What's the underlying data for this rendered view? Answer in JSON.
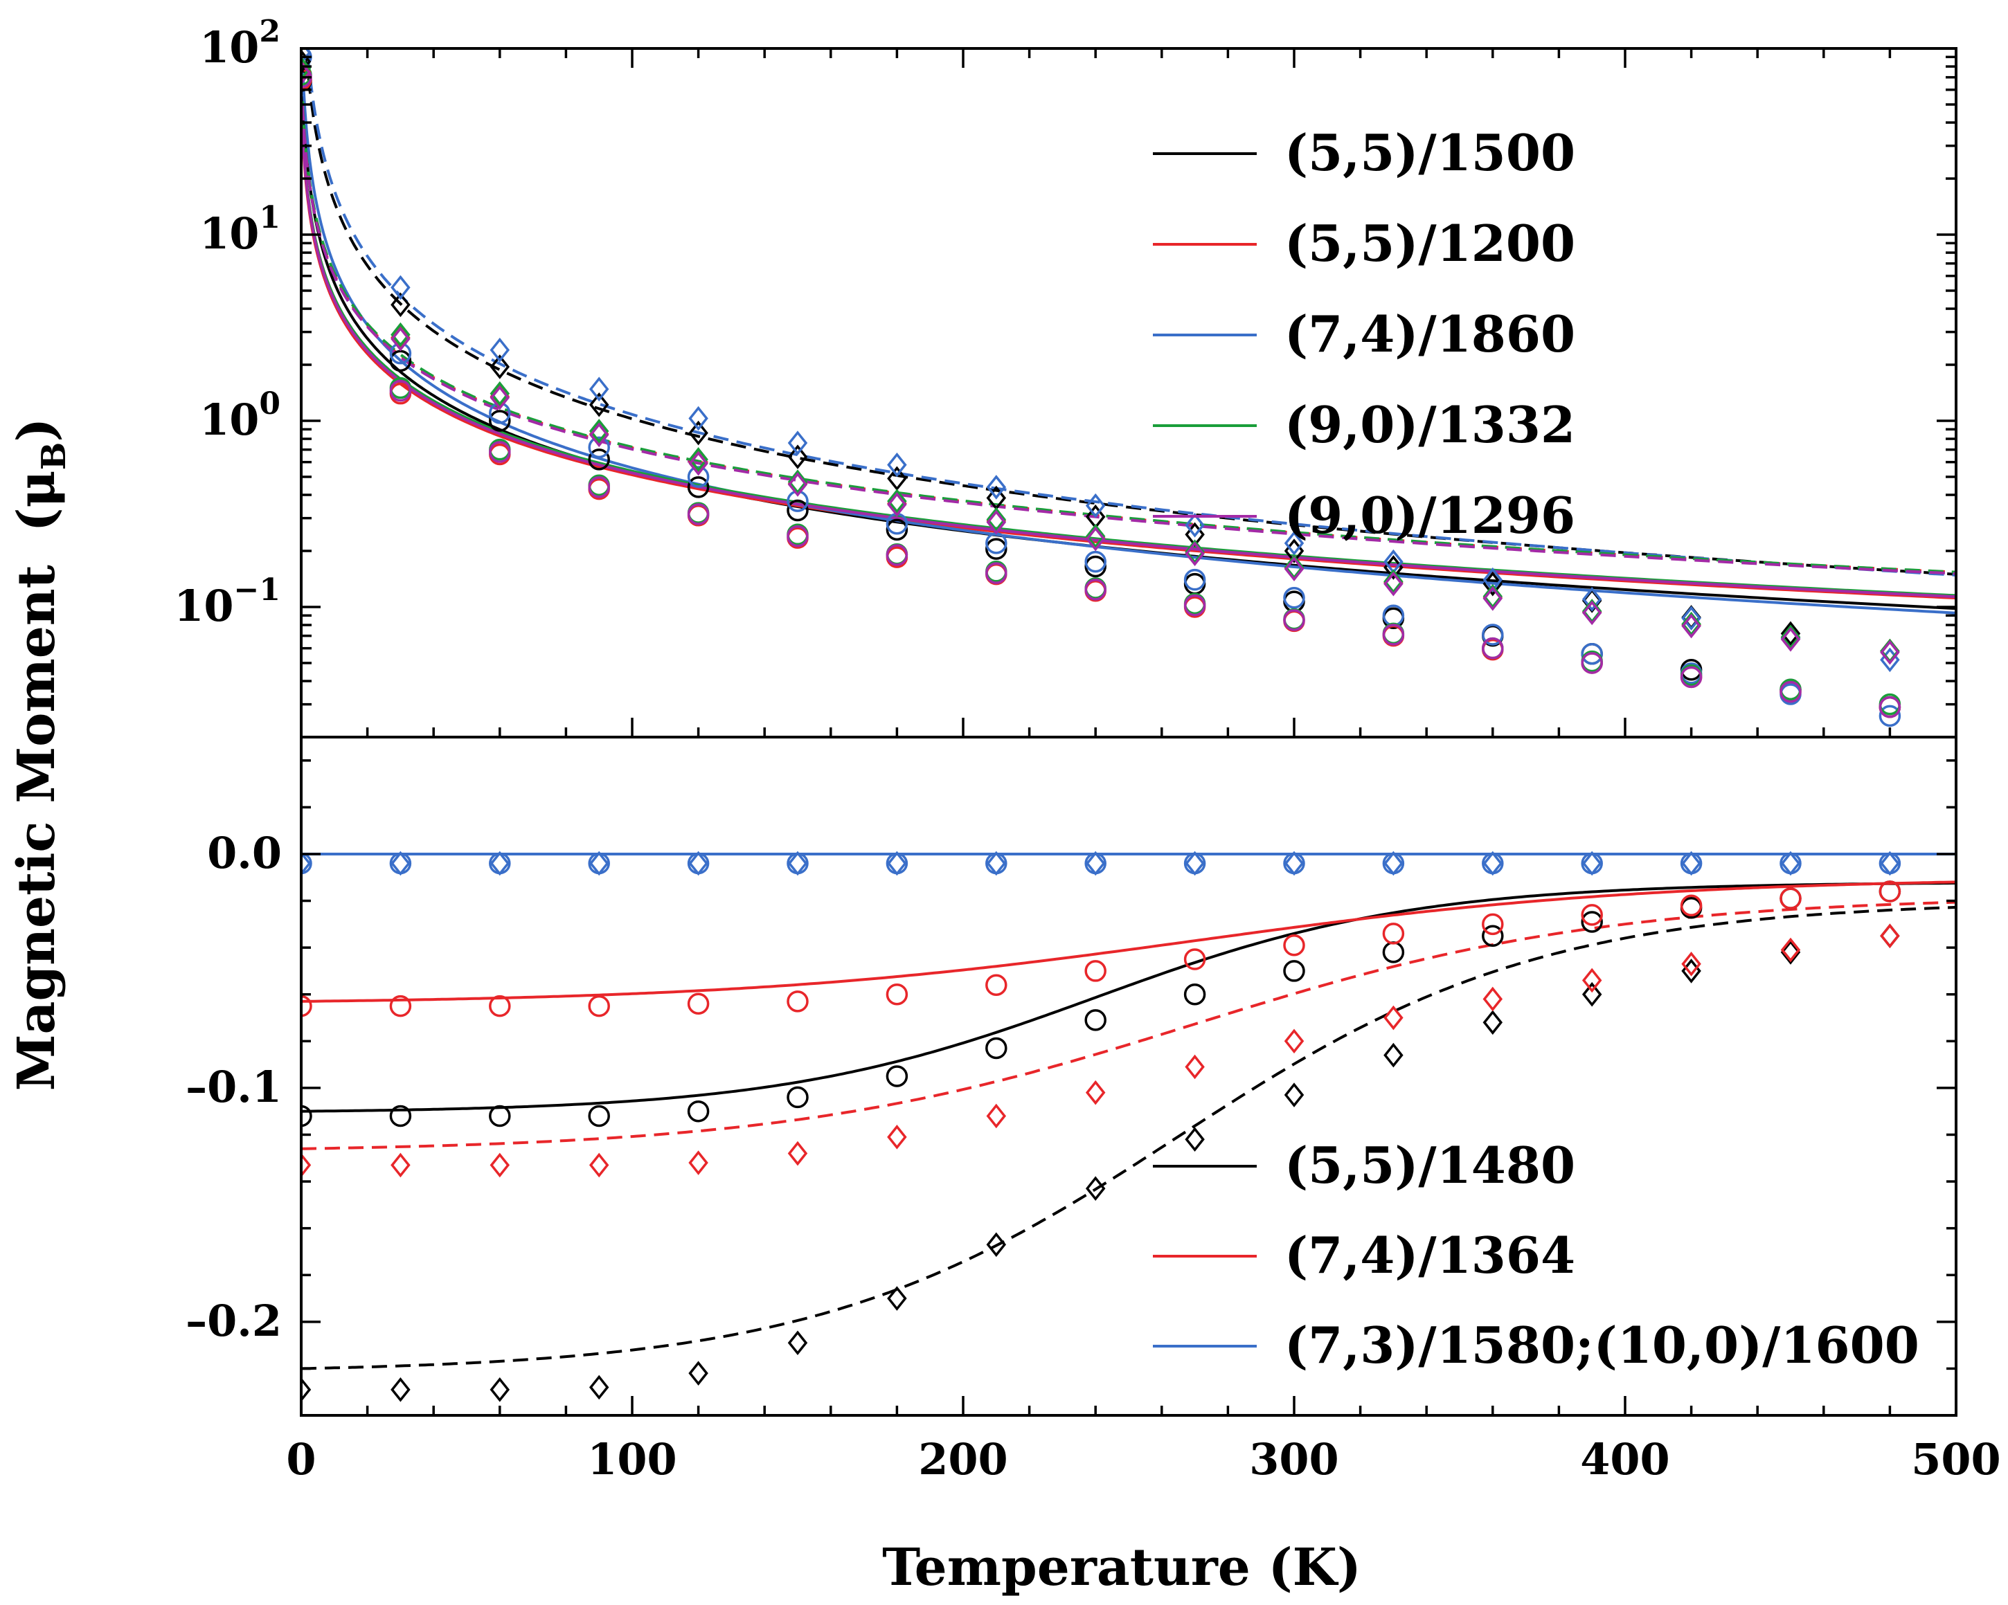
{
  "chart_data": [
    {
      "panel": "top",
      "type": "line",
      "yscale": "log",
      "xlim": [
        0,
        500
      ],
      "ylim": [
        0.02,
        100
      ],
      "ylabel": "Magnetic Moment",
      "ylabel_unit_symbol": "μ",
      "ylabel_unit_sub": "B",
      "ytick_labels": [
        {
          "value": 100,
          "base": "10",
          "exp": "2"
        },
        {
          "value": 10,
          "base": "10",
          "exp": "1"
        },
        {
          "value": 1,
          "base": "10",
          "exp": "0"
        },
        {
          "value": 0.1,
          "base": "10",
          "exp": "−1"
        }
      ],
      "legend_position": "top-right",
      "legend": [
        {
          "label": "(5,5)/1500",
          "color": "#000000"
        },
        {
          "label": "(5,5)/1200",
          "color": "#e8262a"
        },
        {
          "label": "(7,4)/1860",
          "color": "#3a6fc9"
        },
        {
          "label": "(9,0)/1332",
          "color": "#1a9e3a"
        },
        {
          "label": "(9,0)/1296",
          "color": "#a32aa6"
        }
      ],
      "marker_x": [
        0,
        30,
        60,
        90,
        120,
        150,
        180,
        210,
        240,
        270,
        300,
        330,
        360,
        390,
        420,
        450,
        480
      ],
      "series": [
        {
          "name": "(5,5)/1500 solid",
          "color": "#000000",
          "dash": false,
          "marker": "circle",
          "a": 67,
          "n": 1.05,
          "c": 0.0,
          "t0": 0.8,
          "values": [
            67,
            2.1,
            1.0,
            0.62,
            0.44,
            0.33,
            0.26,
            0.205,
            0.165,
            0.133,
            0.107,
            0.087,
            0.07,
            0.056,
            0.046,
            0.036,
            0.029
          ]
        },
        {
          "name": "(5,5)/1200 solid",
          "color": "#e8262a",
          "dash": false,
          "marker": "circle",
          "a": 41,
          "n": 0.95,
          "c": 0.0,
          "t0": 0.8,
          "values": [
            68,
            1.4,
            0.66,
            0.43,
            0.31,
            0.235,
            0.185,
            0.15,
            0.122,
            0.1,
            0.084,
            0.07,
            0.059,
            0.05,
            0.042,
            0.035,
            0.029
          ]
        },
        {
          "name": "(7,4)/1860 solid",
          "color": "#3a6fc9",
          "dash": false,
          "marker": "circle",
          "a": 98,
          "n": 1.12,
          "c": 0.0,
          "t0": 0.8,
          "values": [
            90,
            2.3,
            1.1,
            0.72,
            0.5,
            0.37,
            0.28,
            0.22,
            0.175,
            0.14,
            0.112,
            0.09,
            0.071,
            0.056,
            0.044,
            0.034,
            0.026
          ]
        },
        {
          "name": "(9,0)/1332 solid",
          "color": "#1a9e3a",
          "dash": false,
          "marker": "circle",
          "a": 45,
          "n": 0.96,
          "c": 0.0,
          "t0": 0.8,
          "values": [
            72,
            1.5,
            0.7,
            0.45,
            0.32,
            0.245,
            0.192,
            0.155,
            0.126,
            0.104,
            0.086,
            0.072,
            0.06,
            0.051,
            0.043,
            0.036,
            0.03
          ]
        },
        {
          "name": "(9,0)/1296 solid",
          "color": "#a32aa6",
          "dash": false,
          "marker": "circle",
          "a": 43,
          "n": 0.955,
          "c": 0.0,
          "t0": 0.8,
          "values": [
            70,
            1.45,
            0.68,
            0.44,
            0.315,
            0.24,
            0.19,
            0.152,
            0.124,
            0.102,
            0.085,
            0.071,
            0.06,
            0.05,
            0.042,
            0.035,
            0.029
          ]
        },
        {
          "name": "(5,5)/1500 dashed",
          "color": "#000000",
          "dash": true,
          "marker": "diamond",
          "a": 260,
          "n": 1.2,
          "c": 0.0,
          "t0": 0.8,
          "values": [
            85,
            4.2,
            1.95,
            1.22,
            0.86,
            0.64,
            0.49,
            0.385,
            0.305,
            0.245,
            0.2,
            0.163,
            0.133,
            0.108,
            0.088,
            0.072,
            0.058
          ]
        },
        {
          "name": "(5,5)/1200 dashed",
          "color": "#e8262a",
          "dash": true,
          "marker": "diamond",
          "a": 60,
          "n": 0.96,
          "c": 0.0,
          "t0": 0.8,
          "values": [
            75,
            2.8,
            1.35,
            0.85,
            0.6,
            0.46,
            0.36,
            0.29,
            0.235,
            0.195,
            0.162,
            0.135,
            0.112,
            0.094,
            0.08,
            0.068,
            0.058
          ]
        },
        {
          "name": "(7,4)/1860 dashed",
          "color": "#3a6fc9",
          "dash": true,
          "marker": "diamond",
          "a": 330,
          "n": 1.24,
          "c": 0.0,
          "t0": 0.8,
          "values": [
            95,
            5.2,
            2.4,
            1.48,
            1.03,
            0.76,
            0.58,
            0.44,
            0.35,
            0.275,
            0.22,
            0.175,
            0.14,
            0.11,
            0.087,
            0.068,
            0.052
          ]
        },
        {
          "name": "(9,0)/1332 dashed",
          "color": "#1a9e3a",
          "dash": true,
          "marker": "diamond",
          "a": 62,
          "n": 0.965,
          "c": 0.0,
          "t0": 0.8,
          "values": [
            78,
            2.9,
            1.4,
            0.88,
            0.62,
            0.47,
            0.37,
            0.295,
            0.24,
            0.198,
            0.164,
            0.137,
            0.114,
            0.095,
            0.081,
            0.069,
            0.058
          ]
        },
        {
          "name": "(9,0)/1296 dashed",
          "color": "#a32aa6",
          "dash": true,
          "marker": "diamond",
          "a": 59,
          "n": 0.96,
          "c": 0.0,
          "t0": 0.8,
          "values": [
            74,
            2.75,
            1.33,
            0.84,
            0.59,
            0.455,
            0.355,
            0.285,
            0.232,
            0.193,
            0.16,
            0.133,
            0.111,
            0.093,
            0.079,
            0.067,
            0.057
          ]
        }
      ]
    },
    {
      "panel": "bottom",
      "type": "line",
      "yscale": "linear",
      "xlim": [
        0,
        500
      ],
      "ylim": [
        -0.24,
        0.05
      ],
      "xlabel": "Temperature (K)",
      "xtick_values": [
        0,
        100,
        200,
        300,
        400,
        500
      ],
      "xtick_labels": [
        "0",
        "100",
        "200",
        "300",
        "400",
        "500"
      ],
      "ytick_values": [
        0.0,
        -0.1,
        -0.2
      ],
      "ytick_labels": [
        "0.0",
        "–0.1",
        "–0.2"
      ],
      "legend_position": "bottom-right",
      "legend": [
        {
          "label": "(5,5)/1480",
          "color": "#000000"
        },
        {
          "label": "(7,4)/1364",
          "color": "#e8262a"
        },
        {
          "label": "(7,3)/1580;(10,0)/1600",
          "color": "#3a6fc9"
        }
      ],
      "marker_x": [
        0,
        30,
        60,
        90,
        120,
        150,
        180,
        210,
        240,
        270,
        300,
        330,
        360,
        390,
        420,
        450,
        480
      ],
      "series": [
        {
          "name": "(5,5)/1480 solid",
          "color": "#000000",
          "dash": false,
          "marker": "circle",
          "m0": -0.11,
          "tc": 240,
          "w": 48,
          "tail": -0.012,
          "values": [
            -0.112,
            -0.112,
            -0.112,
            -0.112,
            -0.11,
            -0.104,
            -0.095,
            -0.083,
            -0.071,
            -0.06,
            -0.05,
            -0.042,
            -0.035,
            -0.029,
            -0.023,
            -0.019,
            -0.016
          ]
        },
        {
          "name": "(7,4)/1364 solid",
          "color": "#e8262a",
          "dash": false,
          "marker": "circle",
          "m0": -0.063,
          "tc": 270,
          "w": 70,
          "tail": -0.01,
          "values": [
            -0.065,
            -0.065,
            -0.065,
            -0.065,
            -0.064,
            -0.063,
            -0.06,
            -0.056,
            -0.05,
            -0.045,
            -0.039,
            -0.034,
            -0.03,
            -0.026,
            -0.022,
            -0.019,
            -0.016
          ]
        },
        {
          "name": "(5,5)/1480 dashed",
          "color": "#000000",
          "dash": true,
          "marker": "diamond",
          "m0": -0.22,
          "tc": 265,
          "w": 55,
          "tail": -0.02,
          "values": [
            -0.229,
            -0.229,
            -0.229,
            -0.228,
            -0.222,
            -0.209,
            -0.19,
            -0.167,
            -0.143,
            -0.122,
            -0.103,
            -0.086,
            -0.072,
            -0.06,
            -0.05,
            -0.042,
            -0.035
          ]
        },
        {
          "name": "(7,4)/1364 dashed",
          "color": "#e8262a",
          "dash": true,
          "marker": "diamond",
          "m0": -0.126,
          "tc": 270,
          "w": 62,
          "tail": -0.018,
          "values": [
            -0.133,
            -0.133,
            -0.133,
            -0.133,
            -0.132,
            -0.128,
            -0.121,
            -0.112,
            -0.102,
            -0.091,
            -0.08,
            -0.07,
            -0.062,
            -0.054,
            -0.047,
            -0.041,
            -0.035
          ]
        },
        {
          "name": "(7,3)/1580;(10,0)/1600",
          "color": "#3a6fc9",
          "dash": false,
          "marker": "circle+diamond",
          "m0": 0.0,
          "tc": 0,
          "w": 1,
          "tail": 0.0,
          "values": [
            -0.004,
            -0.004,
            -0.004,
            -0.004,
            -0.004,
            -0.004,
            -0.004,
            -0.004,
            -0.004,
            -0.004,
            -0.004,
            -0.004,
            -0.004,
            -0.004,
            -0.004,
            -0.004,
            -0.004
          ]
        }
      ]
    }
  ]
}
